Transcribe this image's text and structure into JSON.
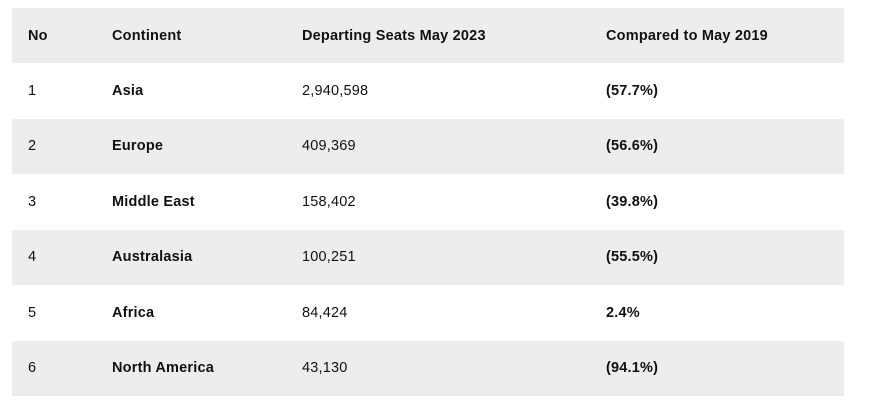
{
  "table": {
    "headers": {
      "no": "No",
      "continent": "Continent",
      "seats": "Departing Seats May 2023",
      "compared": "Compared to May 2019"
    },
    "rows": [
      {
        "no": "1",
        "continent": "Asia",
        "seats": "2,940,598",
        "compared": "(57.7%)"
      },
      {
        "no": "2",
        "continent": "Europe",
        "seats": "409,369",
        "compared": "(56.6%)"
      },
      {
        "no": "3",
        "continent": "Middle East",
        "seats": "158,402",
        "compared": "(39.8%)"
      },
      {
        "no": "4",
        "continent": "Australasia",
        "seats": "100,251",
        "compared": "(55.5%)"
      },
      {
        "no": "5",
        "continent": "Africa",
        "seats": "84,424",
        "compared": "2.4%"
      },
      {
        "no": "6",
        "continent": "North America",
        "seats": "43,130",
        "compared": "(94.1%)"
      }
    ]
  }
}
